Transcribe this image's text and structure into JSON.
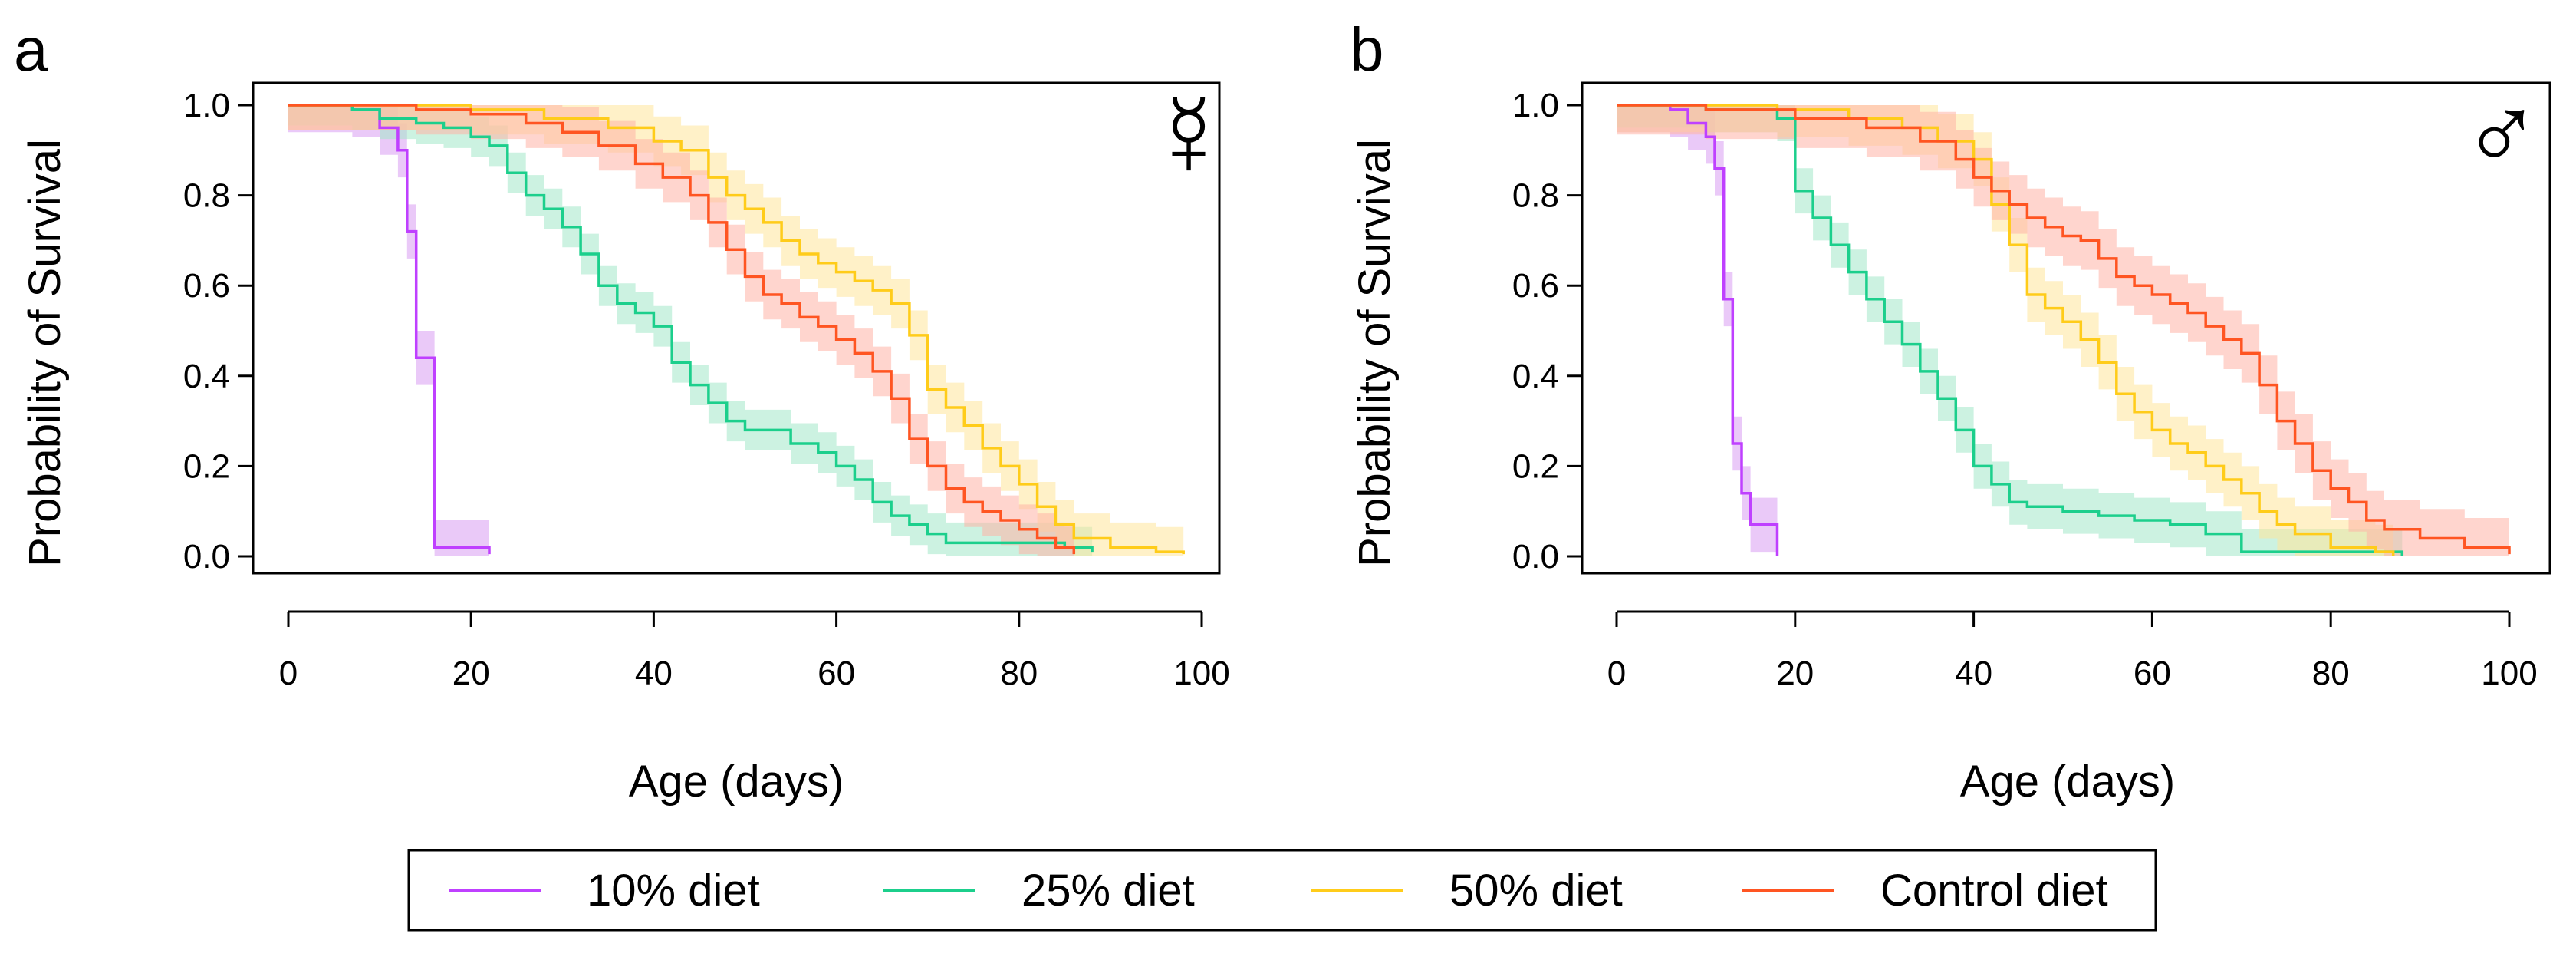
{
  "colors": {
    "d10": "#bf40ff",
    "d25": "#1ccf8c",
    "d50": "#ffcc1a",
    "control": "#ff5522",
    "d10_band": "#d99cf2",
    "d25_band": "#a3e8c9",
    "d50_band": "#ffe69a",
    "control_band": "#ffb3a6"
  },
  "legend": {
    "items": [
      {
        "label": "10% diet",
        "color_key": "d10"
      },
      {
        "label": "25% diet",
        "color_key": "d25"
      },
      {
        "label": "50% diet",
        "color_key": "d50"
      },
      {
        "label": "Control diet",
        "color_key": "control"
      }
    ]
  },
  "chart_data": [
    {
      "panel_label": "a",
      "sex_symbol": "☿",
      "type": "line",
      "step": true,
      "xlabel": "Age (days)",
      "ylabel": "Probability of Survival",
      "xlim": [
        0,
        100
      ],
      "ylim": [
        0,
        1
      ],
      "xticks": [
        "0",
        "20",
        "40",
        "60",
        "80",
        "100"
      ],
      "yticks": [
        "0.0",
        "0.2",
        "0.4",
        "0.6",
        "0.8",
        "1.0"
      ],
      "series": [
        {
          "name": "10% diet",
          "color_key": "d10",
          "x": [
            0,
            7,
            10,
            12,
            13,
            14,
            15,
            16,
            19,
            22
          ],
          "y": [
            1.0,
            0.99,
            0.95,
            0.9,
            0.72,
            0.44,
            0.44,
            0.02,
            0.02,
            0.005
          ],
          "band": 0.06
        },
        {
          "name": "25% diet",
          "color_key": "d25",
          "x": [
            0,
            7,
            10,
            14,
            17,
            20,
            22,
            24,
            26,
            28,
            30,
            32,
            34,
            36,
            38,
            40,
            42,
            44,
            46,
            48,
            50,
            55,
            58,
            60,
            62,
            64,
            66,
            68,
            70,
            72,
            75,
            80,
            85,
            88
          ],
          "y": [
            1.0,
            0.99,
            0.97,
            0.96,
            0.95,
            0.93,
            0.91,
            0.85,
            0.8,
            0.77,
            0.73,
            0.67,
            0.6,
            0.56,
            0.54,
            0.51,
            0.43,
            0.38,
            0.34,
            0.3,
            0.28,
            0.25,
            0.23,
            0.2,
            0.17,
            0.12,
            0.09,
            0.07,
            0.05,
            0.03,
            0.03,
            0.03,
            0.02,
            0.01
          ],
          "band": 0.045
        },
        {
          "name": "50% diet",
          "color_key": "d50",
          "x": [
            0,
            20,
            28,
            35,
            40,
            43,
            46,
            48,
            50,
            52,
            54,
            56,
            58,
            60,
            62,
            64,
            66,
            68,
            70,
            72,
            74,
            76,
            78,
            80,
            82,
            84,
            86,
            90,
            95,
            98
          ],
          "y": [
            1.0,
            0.99,
            0.97,
            0.95,
            0.92,
            0.9,
            0.84,
            0.8,
            0.77,
            0.74,
            0.7,
            0.67,
            0.65,
            0.63,
            0.61,
            0.59,
            0.56,
            0.49,
            0.37,
            0.33,
            0.29,
            0.24,
            0.2,
            0.16,
            0.11,
            0.07,
            0.04,
            0.02,
            0.01,
            0.005
          ],
          "band": 0.055
        },
        {
          "name": "Control diet",
          "color_key": "control",
          "x": [
            0,
            14,
            20,
            26,
            30,
            34,
            38,
            41,
            44,
            46,
            48,
            50,
            52,
            54,
            56,
            58,
            60,
            62,
            64,
            66,
            68,
            70,
            72,
            74,
            76,
            78,
            80,
            82,
            84,
            86
          ],
          "y": [
            1.0,
            0.99,
            0.98,
            0.96,
            0.94,
            0.91,
            0.87,
            0.84,
            0.8,
            0.74,
            0.68,
            0.62,
            0.58,
            0.56,
            0.53,
            0.51,
            0.48,
            0.45,
            0.41,
            0.35,
            0.26,
            0.2,
            0.15,
            0.12,
            0.1,
            0.08,
            0.06,
            0.04,
            0.02,
            0.005
          ],
          "band": 0.055
        }
      ]
    },
    {
      "panel_label": "b",
      "sex_symbol": "♂",
      "type": "line",
      "step": true,
      "xlabel": "Age (days)",
      "ylabel": "Probability of Survival",
      "xlim": [
        0,
        100
      ],
      "ylim": [
        0,
        1
      ],
      "xticks": [
        "0",
        "20",
        "40",
        "60",
        "80",
        "100"
      ],
      "yticks": [
        "0.0",
        "0.2",
        "0.4",
        "0.6",
        "0.8",
        "1.0"
      ],
      "series": [
        {
          "name": "10% diet",
          "color_key": "d10",
          "x": [
            0,
            6,
            8,
            10,
            11,
            12,
            13,
            14,
            15,
            16,
            18
          ],
          "y": [
            1.0,
            0.99,
            0.96,
            0.93,
            0.86,
            0.57,
            0.25,
            0.14,
            0.07,
            0.07,
            0.0
          ],
          "band": 0.06
        },
        {
          "name": "25% diet",
          "color_key": "d25",
          "x": [
            0,
            10,
            18,
            20,
            22,
            24,
            26,
            28,
            30,
            32,
            34,
            36,
            38,
            40,
            42,
            44,
            46,
            50,
            54,
            58,
            62,
            66,
            70,
            75,
            80,
            85,
            88
          ],
          "y": [
            1.0,
            0.99,
            0.97,
            0.81,
            0.75,
            0.69,
            0.63,
            0.57,
            0.52,
            0.47,
            0.41,
            0.35,
            0.28,
            0.2,
            0.16,
            0.12,
            0.11,
            0.1,
            0.09,
            0.08,
            0.07,
            0.05,
            0.01,
            0.01,
            0.01,
            0.01,
            0.0
          ],
          "band": 0.05
        },
        {
          "name": "50% diet",
          "color_key": "d50",
          "x": [
            0,
            18,
            26,
            32,
            36,
            40,
            42,
            44,
            46,
            48,
            50,
            52,
            54,
            56,
            58,
            60,
            62,
            64,
            66,
            68,
            70,
            72,
            74,
            76,
            80,
            85,
            87
          ],
          "y": [
            1.0,
            0.99,
            0.97,
            0.95,
            0.92,
            0.88,
            0.78,
            0.69,
            0.58,
            0.55,
            0.52,
            0.48,
            0.43,
            0.36,
            0.32,
            0.28,
            0.25,
            0.23,
            0.2,
            0.17,
            0.14,
            0.1,
            0.07,
            0.05,
            0.02,
            0.01,
            0.0
          ],
          "band": 0.06
        },
        {
          "name": "Control diet",
          "color_key": "control",
          "x": [
            0,
            10,
            20,
            28,
            34,
            38,
            40,
            42,
            44,
            46,
            48,
            50,
            52,
            54,
            56,
            58,
            60,
            62,
            64,
            66,
            68,
            70,
            72,
            74,
            76,
            78,
            80,
            82,
            84,
            86,
            90,
            95,
            100
          ],
          "y": [
            1.0,
            0.99,
            0.97,
            0.95,
            0.92,
            0.88,
            0.84,
            0.81,
            0.78,
            0.75,
            0.73,
            0.71,
            0.7,
            0.66,
            0.62,
            0.6,
            0.58,
            0.56,
            0.54,
            0.51,
            0.48,
            0.45,
            0.38,
            0.3,
            0.25,
            0.19,
            0.15,
            0.12,
            0.08,
            0.06,
            0.04,
            0.02,
            0.005
          ],
          "band": 0.065
        }
      ]
    }
  ]
}
